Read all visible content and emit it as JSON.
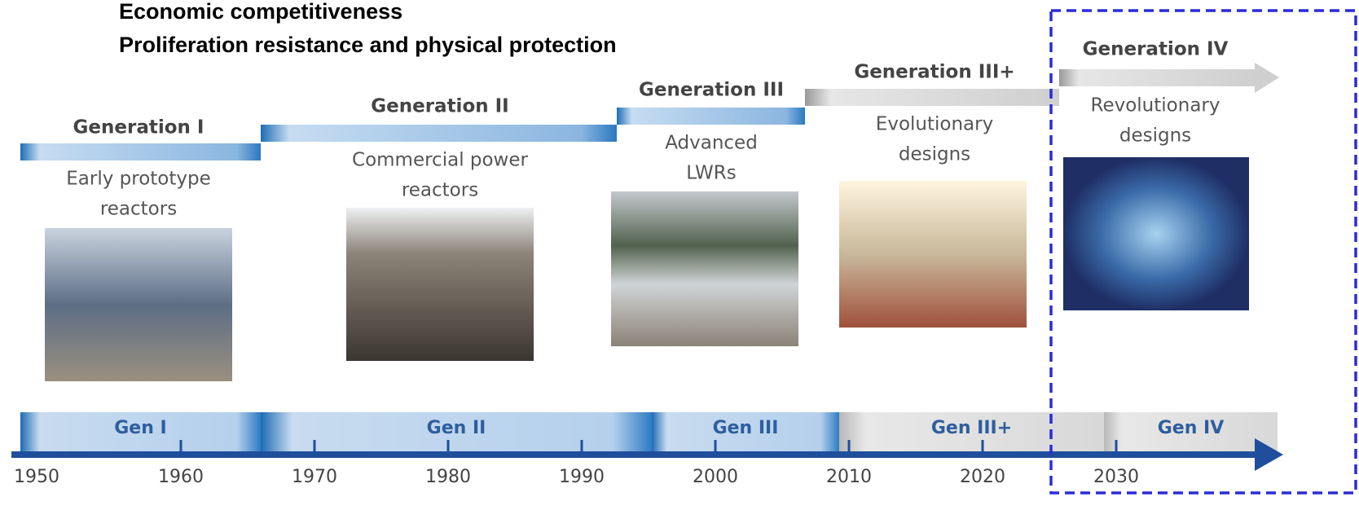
{
  "header": {
    "lines": [
      "Economic competitiveness",
      "Proliferation resistance and physical protection"
    ]
  },
  "generations": [
    {
      "title": "Generation I",
      "description": [
        "Early prototype",
        "reactors"
      ]
    },
    {
      "title": "Generation II",
      "description": [
        "Commercial power",
        "reactors"
      ]
    },
    {
      "title": "Generation III",
      "description": [
        "Advanced",
        "LWRs"
      ]
    },
    {
      "title": "Generation III+",
      "description": [
        "Evolutionary",
        "designs"
      ]
    },
    {
      "title": "Generation IV",
      "description": [
        "Revolutionary",
        "designs"
      ]
    }
  ],
  "timeline": {
    "labels": [
      "Gen I",
      "Gen II",
      "Gen III",
      "Gen III+",
      "Gen IV"
    ],
    "years": [
      1950,
      1960,
      1970,
      1980,
      1990,
      2000,
      2010,
      2020,
      2030
    ]
  }
}
